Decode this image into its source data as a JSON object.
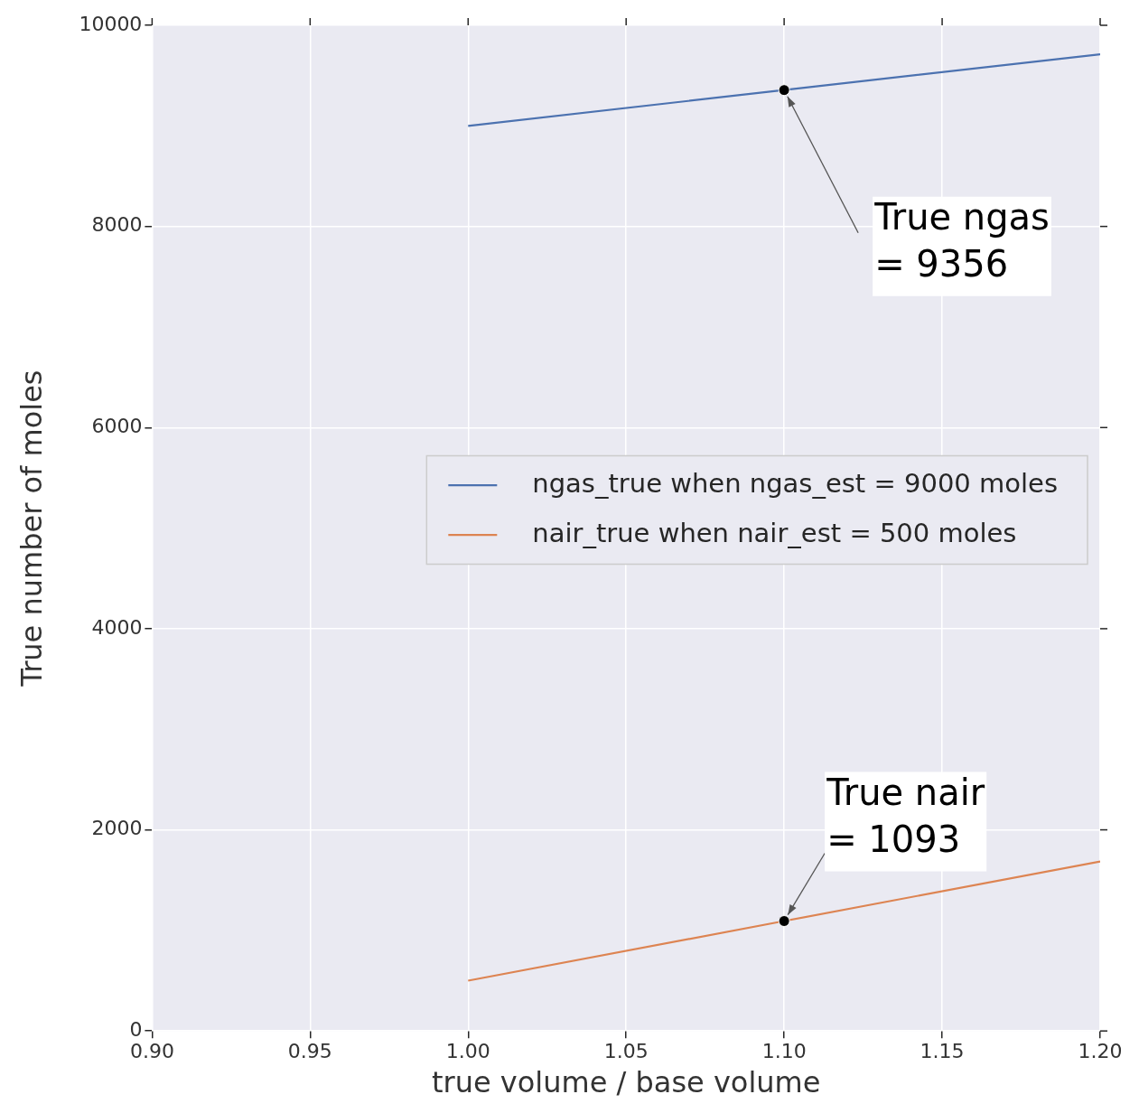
{
  "chart_data": {
    "type": "line",
    "xlabel": "true volume / base volume",
    "ylabel": "True number of moles",
    "series": [
      {
        "name": "ngas_true when ngas_est = 9000 moles",
        "color": "#4c72b0",
        "x": [
          1.0,
          1.1,
          1.2
        ],
        "values": [
          9000,
          9356,
          9712
        ]
      },
      {
        "name": "nair_true when nair_est = 500 moles",
        "color": "#dd8452",
        "x": [
          1.0,
          1.1,
          1.2
        ],
        "values": [
          500,
          1093,
          1686
        ]
      }
    ],
    "xlim": [
      0.9,
      1.2
    ],
    "xticks": [
      {
        "value": 0.9,
        "label": "0.90"
      },
      {
        "value": 0.95,
        "label": "0.95"
      },
      {
        "value": 1.0,
        "label": "1.00"
      },
      {
        "value": 1.05,
        "label": "1.05"
      },
      {
        "value": 1.1,
        "label": "1.10"
      },
      {
        "value": 1.15,
        "label": "1.15"
      },
      {
        "value": 1.2,
        "label": "1.20"
      }
    ],
    "ylim": [
      0,
      10000
    ],
    "yticks": [
      0,
      2000,
      4000,
      6000,
      8000,
      10000
    ],
    "grid": true,
    "legend": "center right",
    "annotations": [
      {
        "text": "True ngas\n= 9356",
        "x": 1.1,
        "y": 9356
      },
      {
        "text": "True nair\n= 1093",
        "x": 1.1,
        "y": 1093
      }
    ]
  }
}
